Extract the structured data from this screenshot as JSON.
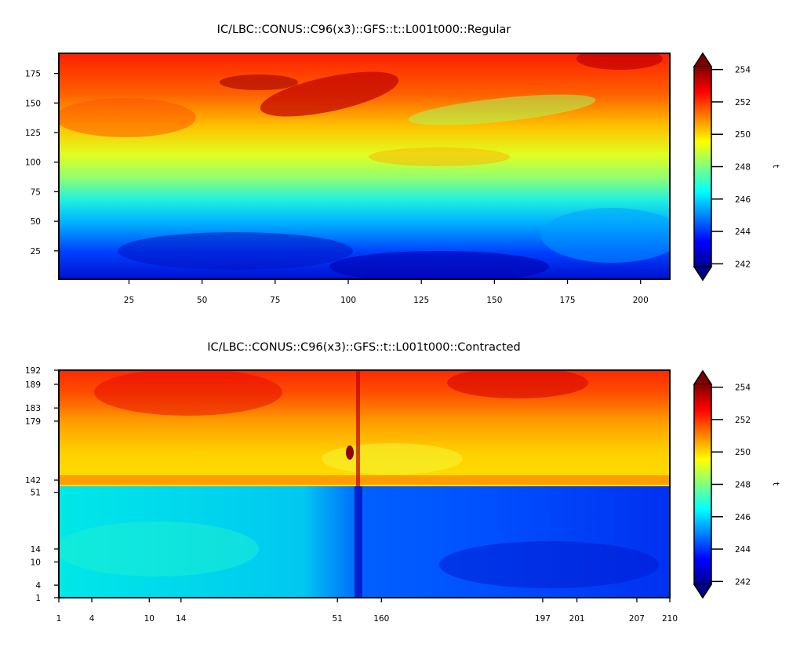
{
  "chart_data": [
    {
      "type": "heatmap",
      "title": "IC/LBC::CONUS::C96(x3)::GFS::t::L001t000::Regular",
      "xlabel": "",
      "ylabel": "",
      "xlim": [
        1,
        210
      ],
      "ylim": [
        1,
        192
      ],
      "x_ticks": [
        25,
        50,
        75,
        100,
        125,
        150,
        175,
        200
      ],
      "y_ticks": [
        25,
        50,
        75,
        100,
        125,
        150,
        175
      ],
      "colorbar": {
        "label": "t",
        "colormap": "jet",
        "range": [
          241,
          255
        ],
        "ticks": [
          242,
          244,
          246,
          248,
          250,
          252,
          254
        ],
        "extend": "both"
      },
      "description_field": "temperature t, cold (~242) at low y rising to ~252-254 near top"
    },
    {
      "type": "heatmap",
      "title": "IC/LBC::CONUS::C96(x3)::GFS::t::L001t000::Contracted",
      "xlabel": "",
      "ylabel": "",
      "x_ticks": [
        1,
        4,
        10,
        14,
        51,
        160,
        197,
        201,
        207,
        210
      ],
      "y_ticks": [
        1,
        4,
        10,
        14,
        51,
        142,
        179,
        183,
        189,
        192
      ],
      "colorbar": {
        "label": "t",
        "colormap": "jet",
        "range": [
          241,
          255
        ],
        "ticks": [
          242,
          244,
          246,
          248,
          250,
          252,
          254
        ],
        "extend": "both"
      }
    }
  ]
}
